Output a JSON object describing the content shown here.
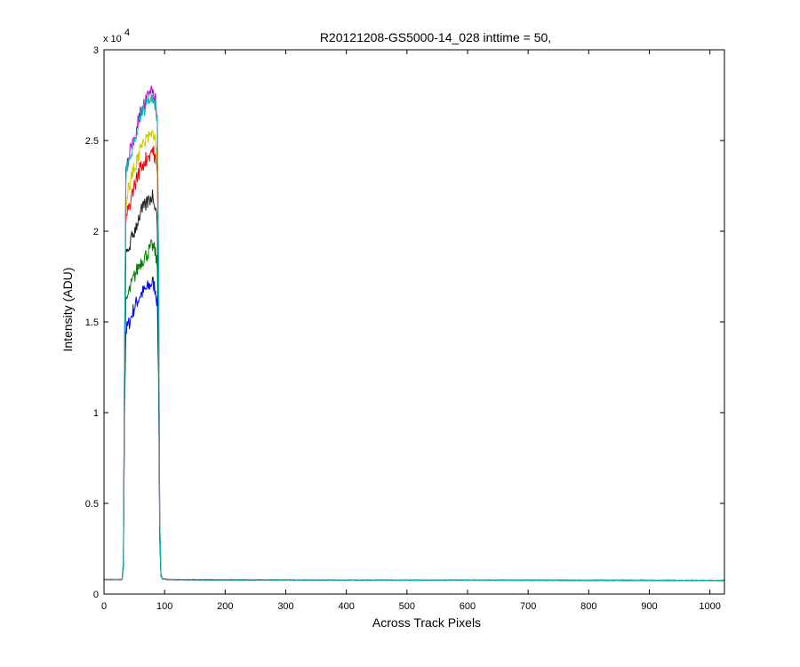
{
  "chart_data": {
    "type": "line",
    "title": "R20121208-GS5000-14_028 inttime = 50,",
    "xlabel": "Across Track Pixels",
    "ylabel": "Intensity (ADU)",
    "xlim": [
      0,
      1024
    ],
    "ylim": [
      0,
      30000
    ],
    "y_multiplier_label": "x 10",
    "y_multiplier_exponent": "4",
    "x_ticks": [
      0,
      100,
      200,
      300,
      400,
      500,
      600,
      700,
      800,
      900,
      1000
    ],
    "x_tick_labels": [
      "0",
      "100",
      "200",
      "300",
      "400",
      "500",
      "600",
      "700",
      "800",
      "900",
      "1000"
    ],
    "y_ticks": [
      0,
      5000,
      10000,
      15000,
      20000,
      25000,
      30000
    ],
    "y_tick_labels": [
      "0",
      "0.5",
      "1",
      "1.5",
      "2",
      "2.5",
      "3"
    ],
    "grid": false,
    "legend": "none",
    "profile_x": [
      0,
      28,
      30,
      32,
      34,
      36,
      40,
      50,
      60,
      70,
      80,
      85,
      88,
      90,
      92,
      94,
      96,
      100,
      110,
      130,
      200,
      400,
      600,
      800,
      1024
    ],
    "series": [
      {
        "color": "#0000ff",
        "values": [
          800,
          800,
          820,
          1500,
          10500,
          14500,
          14800,
          15800,
          16500,
          16800,
          17200,
          16800,
          16000,
          12000,
          3000,
          1000,
          850,
          820,
          800,
          790,
          780,
          770,
          770,
          760,
          750
        ]
      },
      {
        "color": "#008000",
        "values": [
          800,
          800,
          820,
          1500,
          11000,
          16000,
          16500,
          17500,
          18300,
          18700,
          19200,
          18800,
          18000,
          13500,
          3200,
          1000,
          850,
          820,
          800,
          790,
          780,
          770,
          770,
          760,
          750
        ]
      },
      {
        "color": "#222222",
        "values": [
          800,
          800,
          820,
          1600,
          12000,
          18500,
          19000,
          20000,
          21000,
          21500,
          22000,
          21500,
          20500,
          15000,
          3500,
          1100,
          850,
          820,
          800,
          790,
          780,
          770,
          770,
          760,
          750
        ]
      },
      {
        "color": "#ff0000",
        "values": [
          800,
          800,
          820,
          1700,
          13000,
          20500,
          21200,
          22500,
          23500,
          24000,
          24500,
          24000,
          23000,
          16500,
          3800,
          1100,
          850,
          820,
          800,
          790,
          780,
          770,
          770,
          760,
          750
        ]
      },
      {
        "color": "#cccc00",
        "values": [
          800,
          800,
          820,
          1750,
          13500,
          21500,
          22300,
          23500,
          24500,
          25000,
          25400,
          25000,
          24000,
          17200,
          3900,
          1150,
          850,
          820,
          800,
          790,
          780,
          770,
          770,
          760,
          750
        ]
      },
      {
        "color": "#bf00bf",
        "values": [
          800,
          800,
          820,
          1800,
          14000,
          23000,
          24000,
          25200,
          26500,
          27200,
          27800,
          27200,
          26000,
          18500,
          4000,
          1150,
          850,
          820,
          800,
          790,
          780,
          770,
          770,
          760,
          750
        ]
      },
      {
        "color": "#00bfbf",
        "values": [
          800,
          800,
          820,
          1800,
          14000,
          23000,
          23800,
          25000,
          26300,
          27000,
          27500,
          27000,
          26000,
          18500,
          4000,
          1150,
          850,
          820,
          800,
          790,
          780,
          770,
          770,
          760,
          750
        ]
      }
    ]
  }
}
